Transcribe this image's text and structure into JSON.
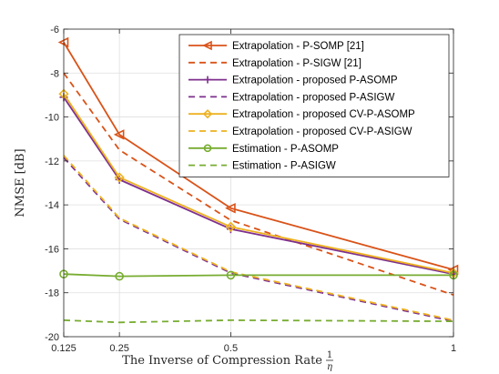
{
  "chart_data": {
    "type": "line",
    "xlabel_main": "The Inverse of Compression Rate",
    "xlabel_frac_num": "1",
    "xlabel_frac_den": "η",
    "ylabel": "NMSE [dB]",
    "xticks": [
      {
        "value": 0.125,
        "label": "0.125"
      },
      {
        "value": 0.25,
        "label": "0.25"
      },
      {
        "value": 0.5,
        "label": "0.5"
      },
      {
        "value": 1,
        "label": "1"
      }
    ],
    "yticks": [
      -20,
      -18,
      -16,
      -14,
      -12,
      -10,
      -8,
      -6
    ],
    "xlim": [
      0.125,
      1
    ],
    "ylim": [
      -20,
      -6
    ],
    "grid": true,
    "legend_position": "top-right",
    "x": [
      0.125,
      0.25,
      0.5,
      1
    ],
    "series": [
      {
        "name": "Extrapolation - P-SOMP [21]",
        "color": "#d95319",
        "dash": "solid",
        "marker": "triangle-left",
        "values": [
          -6.6,
          -10.8,
          -14.15,
          -16.95
        ]
      },
      {
        "name": "Extrapolation - P-SIGW [21]",
        "color": "#d95319",
        "dash": "dashed",
        "marker": "none",
        "values": [
          -8.0,
          -11.5,
          -14.7,
          -18.1
        ]
      },
      {
        "name": "Extrapolation - proposed P-ASOMP",
        "color": "#7e2f8e",
        "dash": "solid",
        "marker": "plus",
        "values": [
          -9.1,
          -12.85,
          -15.1,
          -17.15
        ]
      },
      {
        "name": "Extrapolation - proposed P-ASIGW",
        "color": "#7e2f8e",
        "dash": "dashed",
        "marker": "none",
        "values": [
          -11.85,
          -14.65,
          -17.1,
          -19.3
        ]
      },
      {
        "name": "Extrapolation - proposed CV-P-ASOMP",
        "color": "#edb120",
        "dash": "solid",
        "marker": "diamond",
        "values": [
          -8.95,
          -12.75,
          -15.0,
          -17.1
        ]
      },
      {
        "name": "Extrapolation - proposed CV-P-ASIGW",
        "color": "#edb120",
        "dash": "dashed",
        "marker": "none",
        "values": [
          -11.75,
          -14.6,
          -17.05,
          -19.25
        ]
      },
      {
        "name": "Estimation - P-ASOMP",
        "color": "#77ac30",
        "dash": "solid",
        "marker": "circle",
        "values": [
          -17.15,
          -17.25,
          -17.2,
          -17.2
        ]
      },
      {
        "name": "Estimation - P-ASIGW",
        "color": "#77ac30",
        "dash": "dashed",
        "marker": "none",
        "values": [
          -19.25,
          -19.35,
          -19.25,
          -19.3
        ]
      }
    ]
  }
}
